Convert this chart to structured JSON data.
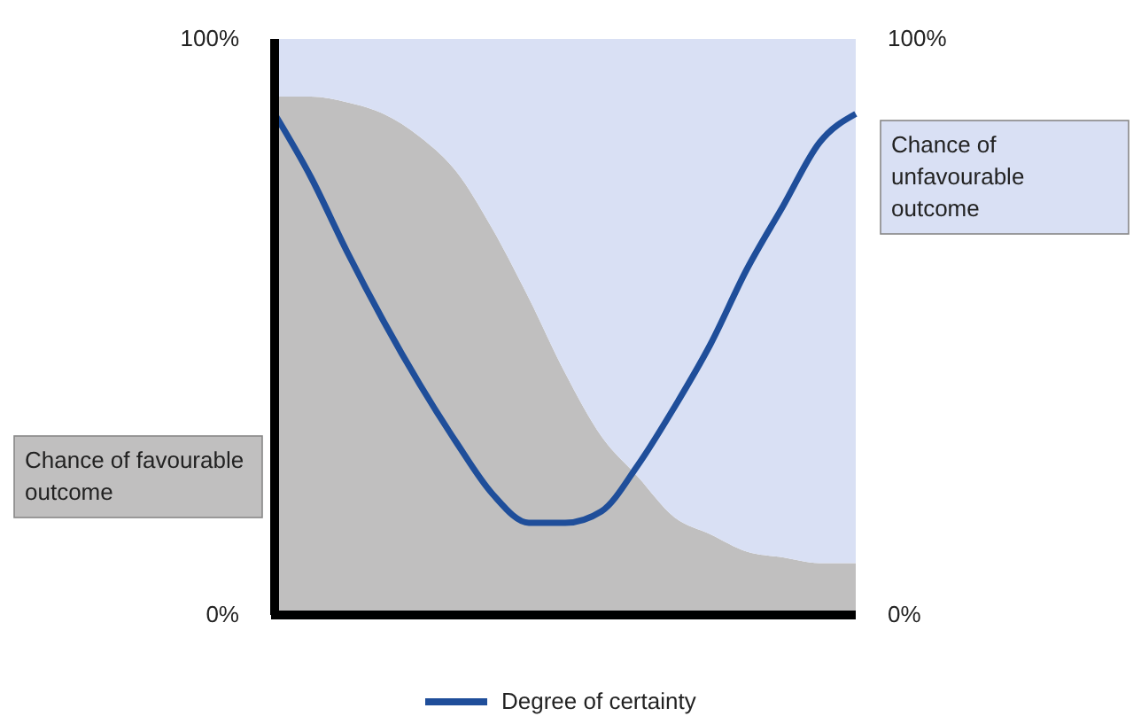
{
  "chart_data": {
    "type": "area",
    "stacked": true,
    "categories": [
      null,
      null,
      null,
      null,
      null,
      null,
      null,
      null,
      null,
      null,
      null,
      null,
      null,
      null,
      null,
      null,
      null
    ],
    "series": [
      {
        "name": "Chance of favourable outcome",
        "color": "#c0bfbf",
        "values": [
          90,
          90,
          89,
          87,
          83,
          77,
          67,
          55,
          42,
          31,
          24,
          17,
          14,
          11,
          10,
          9,
          9
        ]
      },
      {
        "name": "Chance of unfavourable outcome",
        "color": "#d9e0f4",
        "values": [
          10,
          10,
          11,
          13,
          17,
          23,
          33,
          45,
          58,
          69,
          76,
          83,
          86,
          89,
          90,
          91,
          91
        ]
      },
      {
        "name": "Degree of certainty",
        "type": "line",
        "color": "#1f4e9a",
        "values": [
          87,
          76,
          63,
          51,
          40,
          30,
          21,
          16,
          16,
          18,
          26,
          36,
          47,
          60,
          71,
          82,
          87
        ]
      }
    ],
    "ylim": [
      0,
      100
    ],
    "yticks": [
      {
        "value": 0,
        "label": "0%"
      },
      {
        "value": 100,
        "label": "100%"
      }
    ],
    "y2lim": [
      0,
      100
    ],
    "y2ticks": [
      {
        "value": 0,
        "label": "0%"
      },
      {
        "value": 100,
        "label": "100%"
      }
    ],
    "legend": "bottom",
    "grid": false
  }
}
